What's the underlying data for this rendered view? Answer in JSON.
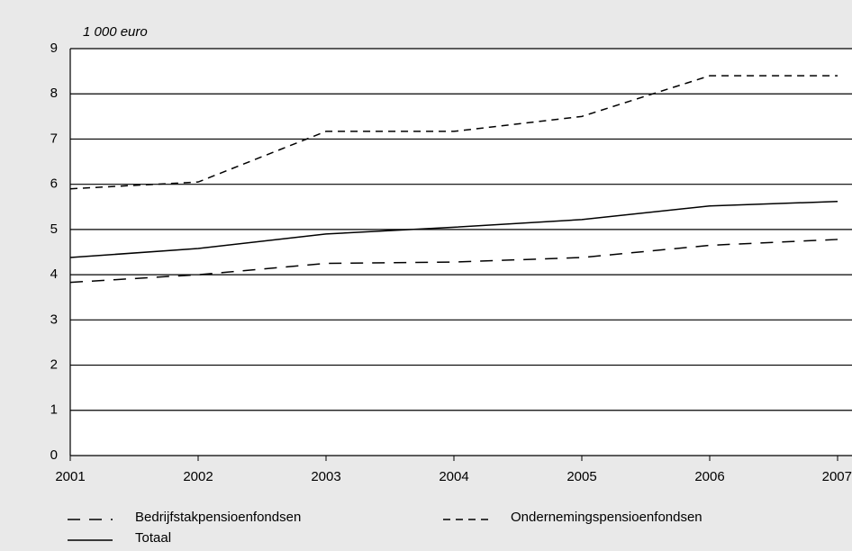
{
  "chart_data": {
    "type": "line",
    "y_label": "1 000 euro",
    "x": [
      2001,
      2002,
      2003,
      2004,
      2005,
      2006,
      2007
    ],
    "xlim": [
      2001,
      2007
    ],
    "xticks": [
      2001,
      2002,
      2003,
      2004,
      2005,
      2006,
      2007
    ],
    "ylim": [
      0,
      9
    ],
    "yticks": [
      0,
      1,
      2,
      3,
      4,
      5,
      6,
      7,
      8,
      9
    ],
    "grid": true,
    "series": [
      {
        "name": "Bedrijfstakpensioenfondsen",
        "color": "#000000",
        "dash": "14,10",
        "values": [
          3.83,
          4.0,
          4.25,
          4.28,
          4.38,
          4.65,
          4.78
        ]
      },
      {
        "name": "Ondernemingspensioenfondsen",
        "color": "#000000",
        "dash": "8,6",
        "values": [
          5.9,
          6.05,
          7.17,
          7.17,
          7.5,
          8.4,
          8.4
        ]
      },
      {
        "name": "Totaal",
        "color": "#000000",
        "dash": "none",
        "values": [
          4.38,
          4.58,
          4.9,
          5.05,
          5.22,
          5.52,
          5.62
        ]
      }
    ]
  }
}
